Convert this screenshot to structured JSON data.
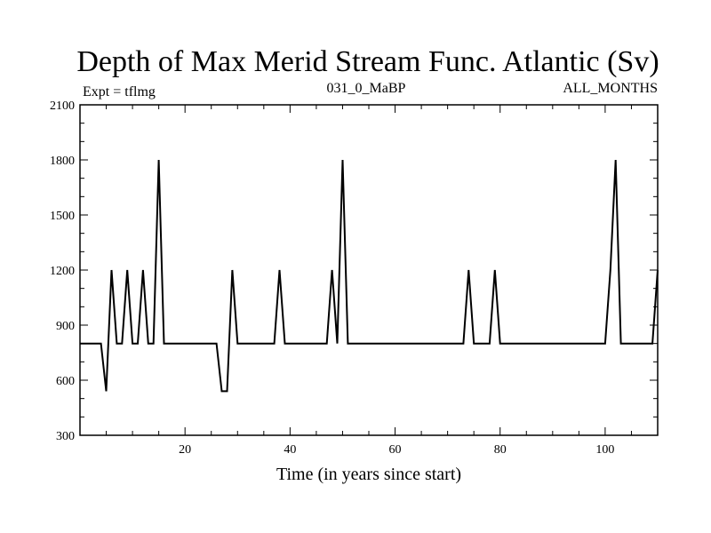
{
  "chart_data": {
    "type": "line",
    "title": "Depth of Max Merid Stream Func. Atlantic (Sv)",
    "subtitle_left": "Expt = tflmg",
    "subtitle_center": "031_0_MaBP",
    "subtitle_right": "ALL_MONTHS",
    "xlabel": "Time (in years since start)",
    "ylabel": "",
    "xlim": [
      0,
      110
    ],
    "ylim": [
      300,
      2100
    ],
    "xticks": [
      20,
      40,
      60,
      80,
      100
    ],
    "yticks": [
      300,
      600,
      900,
      1200,
      1500,
      1800,
      2100
    ],
    "grid": false,
    "series": [
      {
        "color": "#000000",
        "x": [
          0,
          4,
          5,
          6,
          7,
          8,
          9,
          10,
          11,
          12,
          13,
          14,
          15,
          16,
          17,
          18,
          19,
          20,
          21,
          22,
          23,
          24,
          25,
          26,
          27,
          28,
          29,
          30,
          31,
          32,
          33,
          34,
          35,
          36,
          37,
          38,
          39,
          40,
          41,
          42,
          43,
          44,
          45,
          46,
          47,
          48,
          49,
          50,
          51,
          52,
          72,
          73,
          74,
          75,
          76,
          77,
          78,
          79,
          80,
          81,
          82,
          100,
          101,
          102,
          103,
          104,
          105,
          106,
          107,
          108,
          109,
          110
        ],
        "y": [
          800,
          800,
          540,
          1200,
          800,
          800,
          1200,
          800,
          800,
          1200,
          800,
          800,
          1800,
          800,
          800,
          800,
          800,
          800,
          800,
          800,
          800,
          800,
          800,
          800,
          540,
          540,
          1200,
          800,
          800,
          800,
          800,
          800,
          800,
          800,
          800,
          1200,
          800,
          800,
          800,
          800,
          800,
          800,
          800,
          800,
          800,
          1200,
          800,
          1800,
          800,
          800,
          800,
          800,
          1200,
          800,
          800,
          800,
          800,
          1200,
          800,
          800,
          800,
          800,
          1200,
          1800,
          800,
          800,
          800,
          800,
          800,
          800,
          800,
          1200
        ]
      }
    ]
  }
}
